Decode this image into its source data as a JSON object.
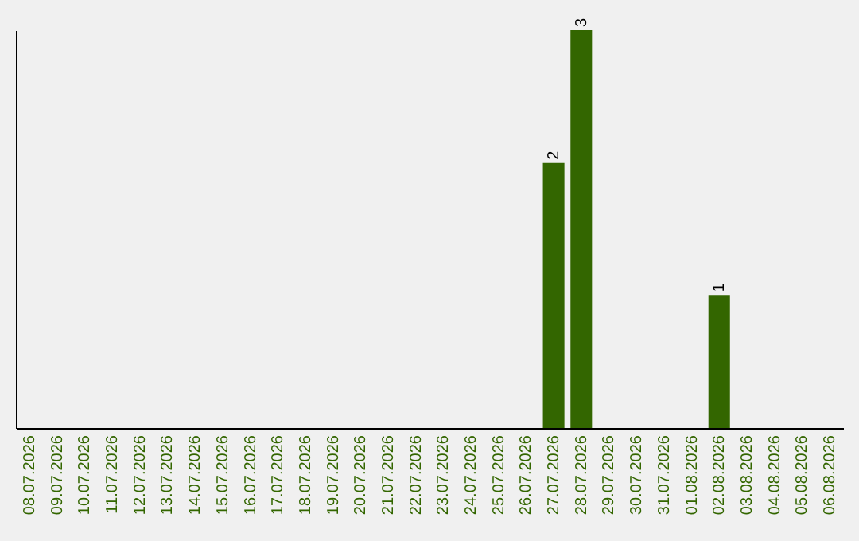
{
  "chart_data": {
    "type": "bar",
    "color": "#336600",
    "tick_labels": "x",
    "categories": [
      "08.07.2026",
      "09.07.2026",
      "10.07.2026",
      "11.07.2026",
      "12.07.2026",
      "13.07.2026",
      "14.07.2026",
      "15.07.2026",
      "16.07.2026",
      "17.07.2026",
      "18.07.2026",
      "19.07.2026",
      "20.07.2026",
      "21.07.2026",
      "22.07.2026",
      "23.07.2026",
      "24.07.2026",
      "25.07.2026",
      "26.07.2026",
      "27.07.2026",
      "28.07.2026",
      "29.07.2026",
      "30.07.2026",
      "31.07.2026",
      "01.08.2026",
      "02.08.2026",
      "03.08.2026",
      "04.08.2026",
      "05.08.2026",
      "06.08.2026"
    ],
    "values": [
      null,
      null,
      null,
      null,
      null,
      null,
      null,
      null,
      null,
      null,
      null,
      null,
      null,
      null,
      null,
      null,
      null,
      null,
      null,
      2,
      3,
      null,
      null,
      null,
      null,
      1,
      null,
      null,
      null,
      null
    ],
    "value_labels": [
      null,
      null,
      null,
      null,
      null,
      null,
      null,
      null,
      null,
      null,
      null,
      null,
      null,
      null,
      null,
      null,
      null,
      null,
      null,
      "2",
      "3",
      null,
      null,
      null,
      null,
      "1",
      null,
      null,
      null,
      null
    ]
  }
}
